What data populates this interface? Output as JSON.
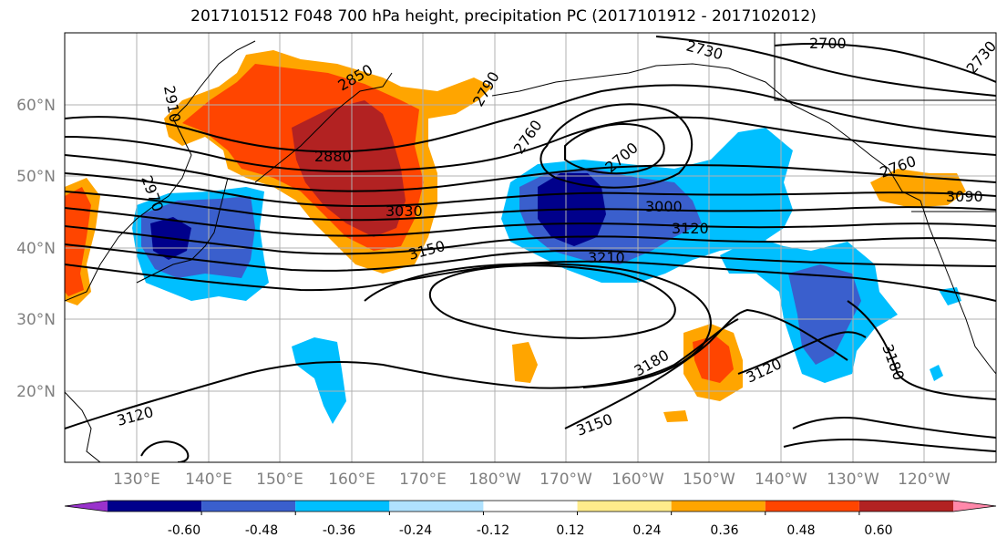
{
  "title": "2017101512 F048 700 hPa height, precipitation PC (2017101912 - 2017102012)",
  "lat_labels": [
    "60°N",
    "50°N",
    "40°N",
    "30°N",
    "20°N"
  ],
  "lon_labels": [
    "130°E",
    "140°E",
    "150°E",
    "160°E",
    "170°E",
    "180°W",
    "170°W",
    "160°W",
    "150°W",
    "140°W",
    "130°W",
    "120°W"
  ],
  "contour_labels": [
    "2910",
    "2850",
    "2790",
    "2730",
    "2700",
    "2760",
    "2880",
    "2970",
    "3000",
    "3030",
    "3090",
    "3120",
    "3150",
    "3180",
    "3210",
    "3120",
    "3150",
    "3180",
    "2700",
    "3120",
    "2730",
    "2760"
  ],
  "colorbar": {
    "colors": [
      "#9932cc",
      "#00008b",
      "#3a5fcd",
      "#00bfff",
      "#b0e2ff",
      "#ffffff",
      "#ffec8b",
      "#ffa500",
      "#ff4500",
      "#b22222",
      "#ff88aa"
    ],
    "tick_labels": [
      "-0.60",
      "-0.48",
      "-0.36",
      "-0.24",
      "-0.12",
      "0.12",
      "0.24",
      "0.36",
      "0.48",
      "0.60"
    ]
  }
}
